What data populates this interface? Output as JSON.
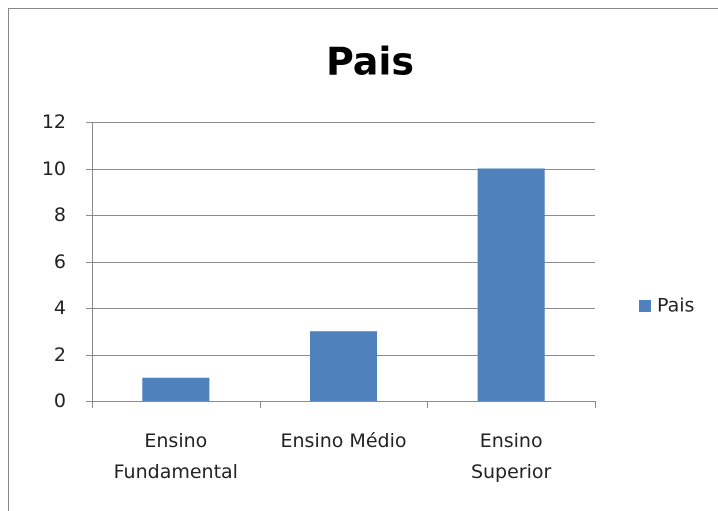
{
  "chart_data": {
    "type": "bar",
    "title": "Pais",
    "categories": [
      "Ensino Fundamental",
      "Ensino Médio",
      "Ensino Superior"
    ],
    "series": [
      {
        "name": "Pais",
        "color": "#4f81bd",
        "values": [
          1,
          3,
          10
        ]
      }
    ],
    "ylim": [
      0,
      12
    ],
    "yticks": [
      0,
      2,
      4,
      6,
      8,
      10,
      12
    ],
    "grid": true,
    "legend": "right"
  }
}
